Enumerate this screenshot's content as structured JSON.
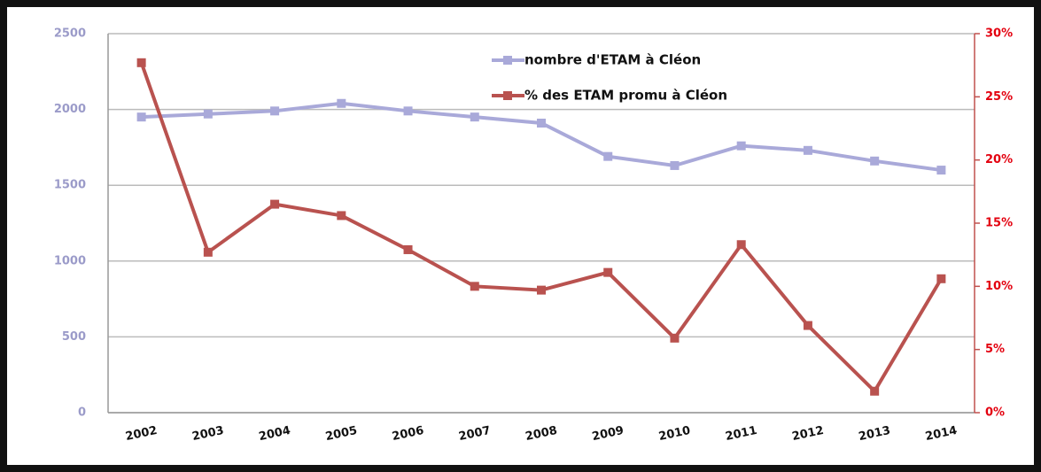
{
  "chart_data": {
    "type": "line",
    "categories": [
      "2002",
      "2003",
      "2004",
      "2005",
      "2006",
      "2007",
      "2008",
      "2009",
      "2010",
      "2011",
      "2012",
      "2013",
      "2014"
    ],
    "series": [
      {
        "name": "nombre d'ETAM à Cléon",
        "color": "#a9a9d9",
        "values": [
          1950,
          1970,
          1990,
          2040,
          1990,
          1950,
          1910,
          1690,
          1630,
          1760,
          1730,
          1660,
          1600
        ]
      },
      {
        "name": "% des ETAM promu à Cléon",
        "color": "#b9524f",
        "axis": "y2",
        "values": [
          27.7,
          12.7,
          16.5,
          15.6,
          12.9,
          10.0,
          9.7,
          11.1,
          5.9,
          13.3,
          6.9,
          1.7,
          10.6
        ]
      }
    ],
    "ylim": [
      0,
      2500
    ],
    "yticks": [
      0,
      500,
      1000,
      1500,
      2000,
      2500
    ],
    "y2lim": [
      0,
      30
    ],
    "y2ticks": [
      {
        "value": 0,
        "label": "0%"
      },
      {
        "value": 5,
        "label": "5%"
      },
      {
        "value": 10,
        "label": "10%"
      },
      {
        "value": 15,
        "label": "15%"
      },
      {
        "value": 20,
        "label": "20%"
      },
      {
        "value": 25,
        "label": "25%"
      },
      {
        "value": 30,
        "label": "30%"
      }
    ],
    "grid": true
  }
}
